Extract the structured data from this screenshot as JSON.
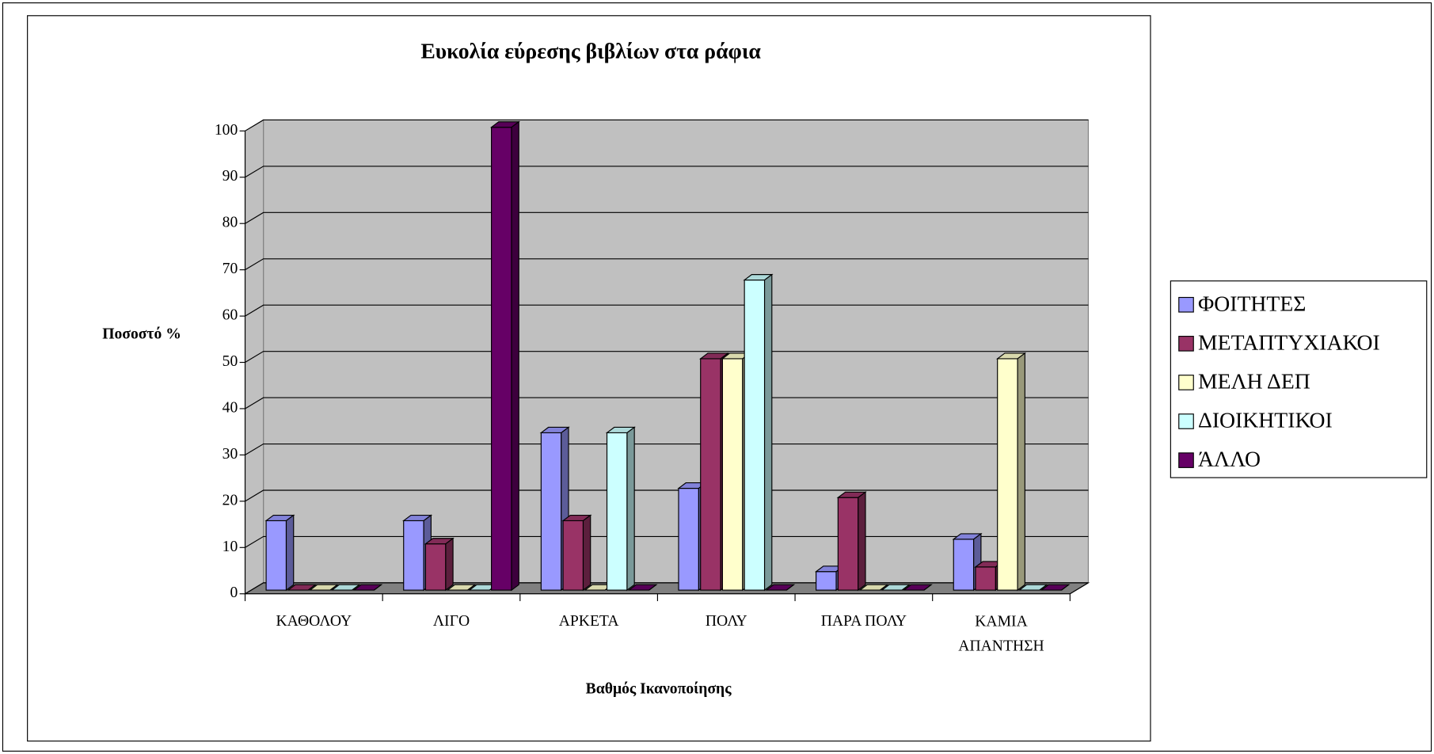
{
  "chart_data": {
    "type": "bar3d",
    "title": "Ευκολία εύρεσης βιβλίων στα ράφια",
    "y_label": "Ποσοστό %",
    "x_label": "Βαθμός Ικανοποίησης",
    "categories": [
      "ΚΑΘΟΛΟΥ",
      "ΛΙΓΟ",
      "ΑΡΚΕΤΑ",
      "ΠΟΛΥ",
      "ΠΑΡΑ ΠΟΛΥ",
      "ΚΑΜΙΑ\nΑΠΑΝΤΗΣΗ"
    ],
    "series": [
      {
        "name": "ΦΟΙΤΗΤΕΣ",
        "color": "#9999ff",
        "values": [
          15,
          15,
          34,
          22,
          4,
          11
        ]
      },
      {
        "name": "ΜΕΤΑΠΤΥΧΙΑΚΟΙ",
        "color": "#993366",
        "values": [
          0,
          10,
          15,
          50,
          20,
          5
        ]
      },
      {
        "name": "ΜΕΛΗ ΔΕΠ",
        "color": "#ffffcc",
        "values": [
          0,
          0,
          0,
          50,
          0,
          50
        ]
      },
      {
        "name": "ΔΙΟΙΚΗΤΙΚΟΙ",
        "color": "#ccffff",
        "values": [
          0,
          0,
          34,
          67,
          0,
          0
        ]
      },
      {
        "name": "ΆΛΛΟ",
        "color": "#660066",
        "values": [
          0,
          100,
          0,
          0,
          0,
          0
        ]
      }
    ],
    "ylim": [
      0,
      100
    ],
    "yticks": [
      0,
      10,
      20,
      30,
      40,
      50,
      60,
      70,
      80,
      90,
      100
    ],
    "grid": true,
    "legend": "right"
  }
}
